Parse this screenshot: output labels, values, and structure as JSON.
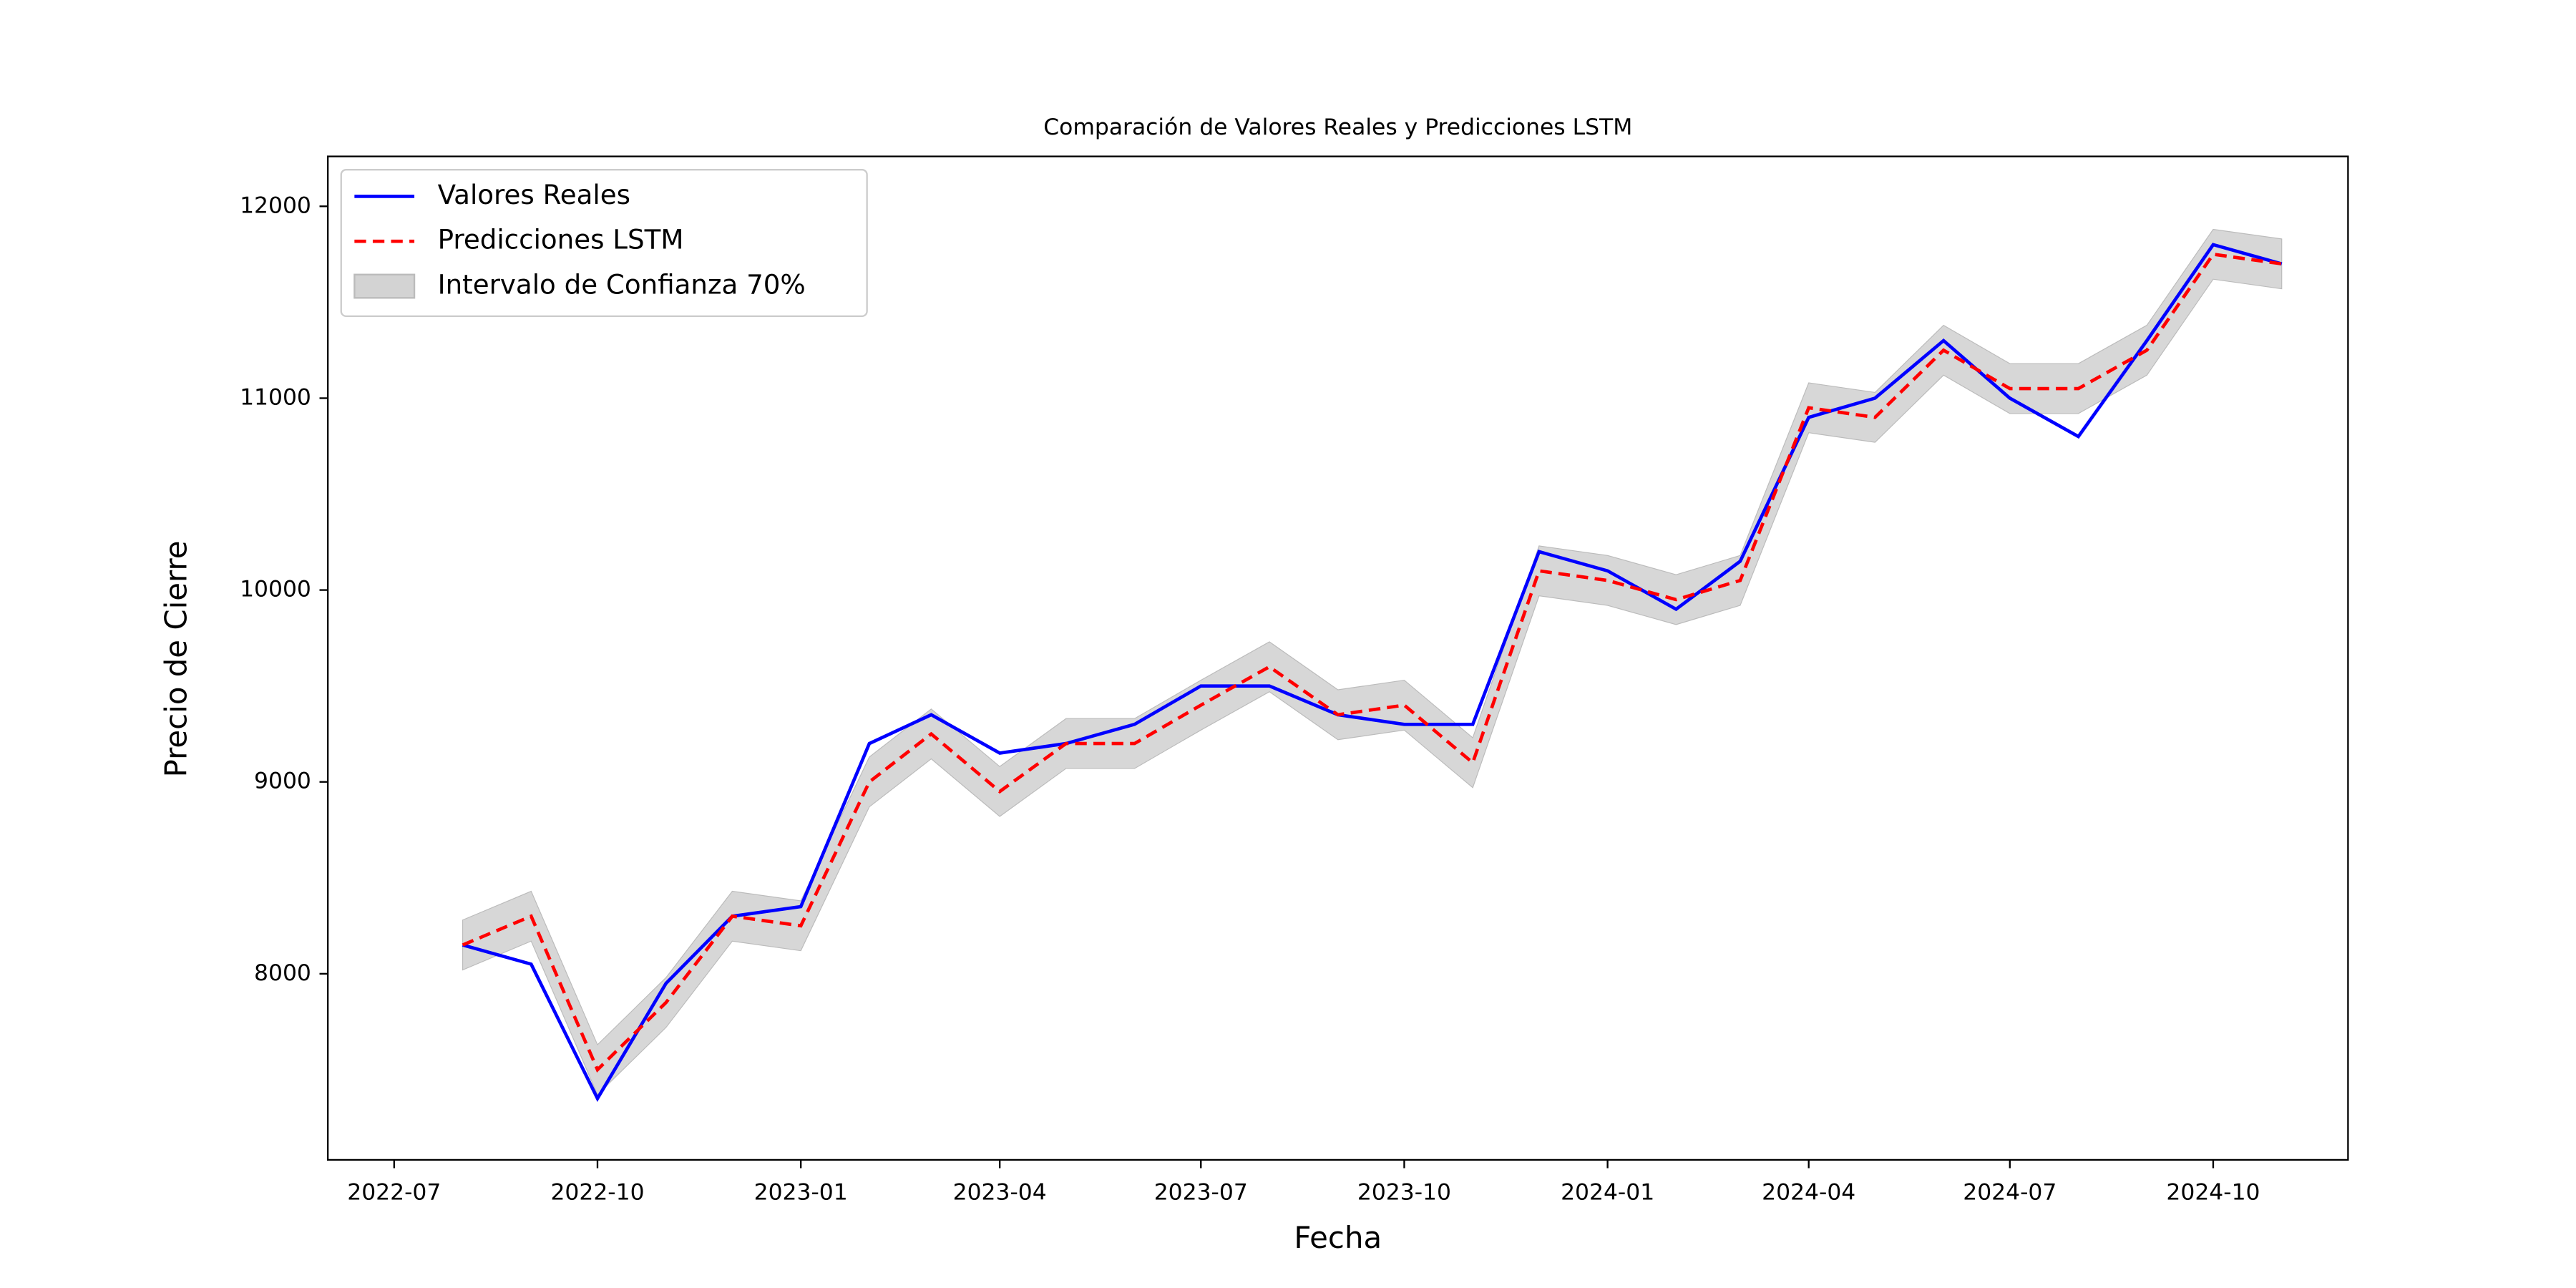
{
  "chart_data": {
    "type": "line",
    "title": "Comparación de Valores Reales y Predicciones LSTM",
    "xlabel": "Fecha",
    "ylabel": "Precio de Cierre",
    "x": [
      "2022-08",
      "2022-09",
      "2022-10",
      "2022-11",
      "2022-12",
      "2023-01",
      "2023-02",
      "2023-03",
      "2023-04",
      "2023-05",
      "2023-06",
      "2023-07",
      "2023-08",
      "2023-09",
      "2023-10",
      "2023-11",
      "2023-12",
      "2024-01",
      "2024-02",
      "2024-03",
      "2024-04",
      "2024-05",
      "2024-06",
      "2024-07",
      "2024-08",
      "2024-09",
      "2024-10",
      "2024-11"
    ],
    "series": [
      {
        "name": "Valores Reales",
        "color": "#0000ff",
        "style": "solid",
        "values": [
          8150,
          8050,
          7350,
          7950,
          8300,
          8350,
          9200,
          9350,
          9150,
          9200,
          9300,
          9500,
          9500,
          9350,
          9300,
          9300,
          10200,
          10100,
          9900,
          10150,
          10900,
          11000,
          11300,
          11000,
          10800,
          11300,
          11800,
          11700
        ]
      },
      {
        "name": "Predicciones LSTM",
        "color": "#ff0000",
        "style": "dashed",
        "values": [
          8150,
          8300,
          7500,
          7850,
          8300,
          8250,
          9000,
          9250,
          8950,
          9200,
          9200,
          9400,
          9600,
          9350,
          9400,
          9100,
          10100,
          10050,
          9950,
          10050,
          10950,
          10900,
          11250,
          11050,
          11050,
          11250,
          11750,
          11700
        ]
      }
    ],
    "band": {
      "name": "Intervalo de Confianza 70%",
      "color": "#d3d3d3",
      "lower": [
        8020,
        8170,
        7370,
        7720,
        8170,
        8120,
        8870,
        9120,
        8820,
        9070,
        9070,
        9270,
        9470,
        9220,
        9270,
        8970,
        9970,
        9920,
        9820,
        9920,
        10820,
        10770,
        11120,
        10920,
        10920,
        11120,
        11620,
        11570
      ],
      "upper": [
        8280,
        8430,
        7630,
        7980,
        8430,
        8380,
        9130,
        9380,
        9080,
        9330,
        9330,
        9530,
        9730,
        9480,
        9530,
        9230,
        10230,
        10180,
        10080,
        10180,
        11080,
        11030,
        11380,
        11180,
        11180,
        11380,
        11880,
        11830
      ]
    },
    "xlim": [
      "2022-06",
      "2024-12"
    ],
    "xticks": [
      "2022-07",
      "2022-10",
      "2023-01",
      "2023-04",
      "2023-07",
      "2023-10",
      "2024-01",
      "2024-04",
      "2024-07",
      "2024-10"
    ],
    "ylim": [
      7030,
      12260
    ],
    "yticks": [
      8000,
      9000,
      10000,
      11000,
      12000
    ],
    "legend": "upper left",
    "grid": false
  }
}
